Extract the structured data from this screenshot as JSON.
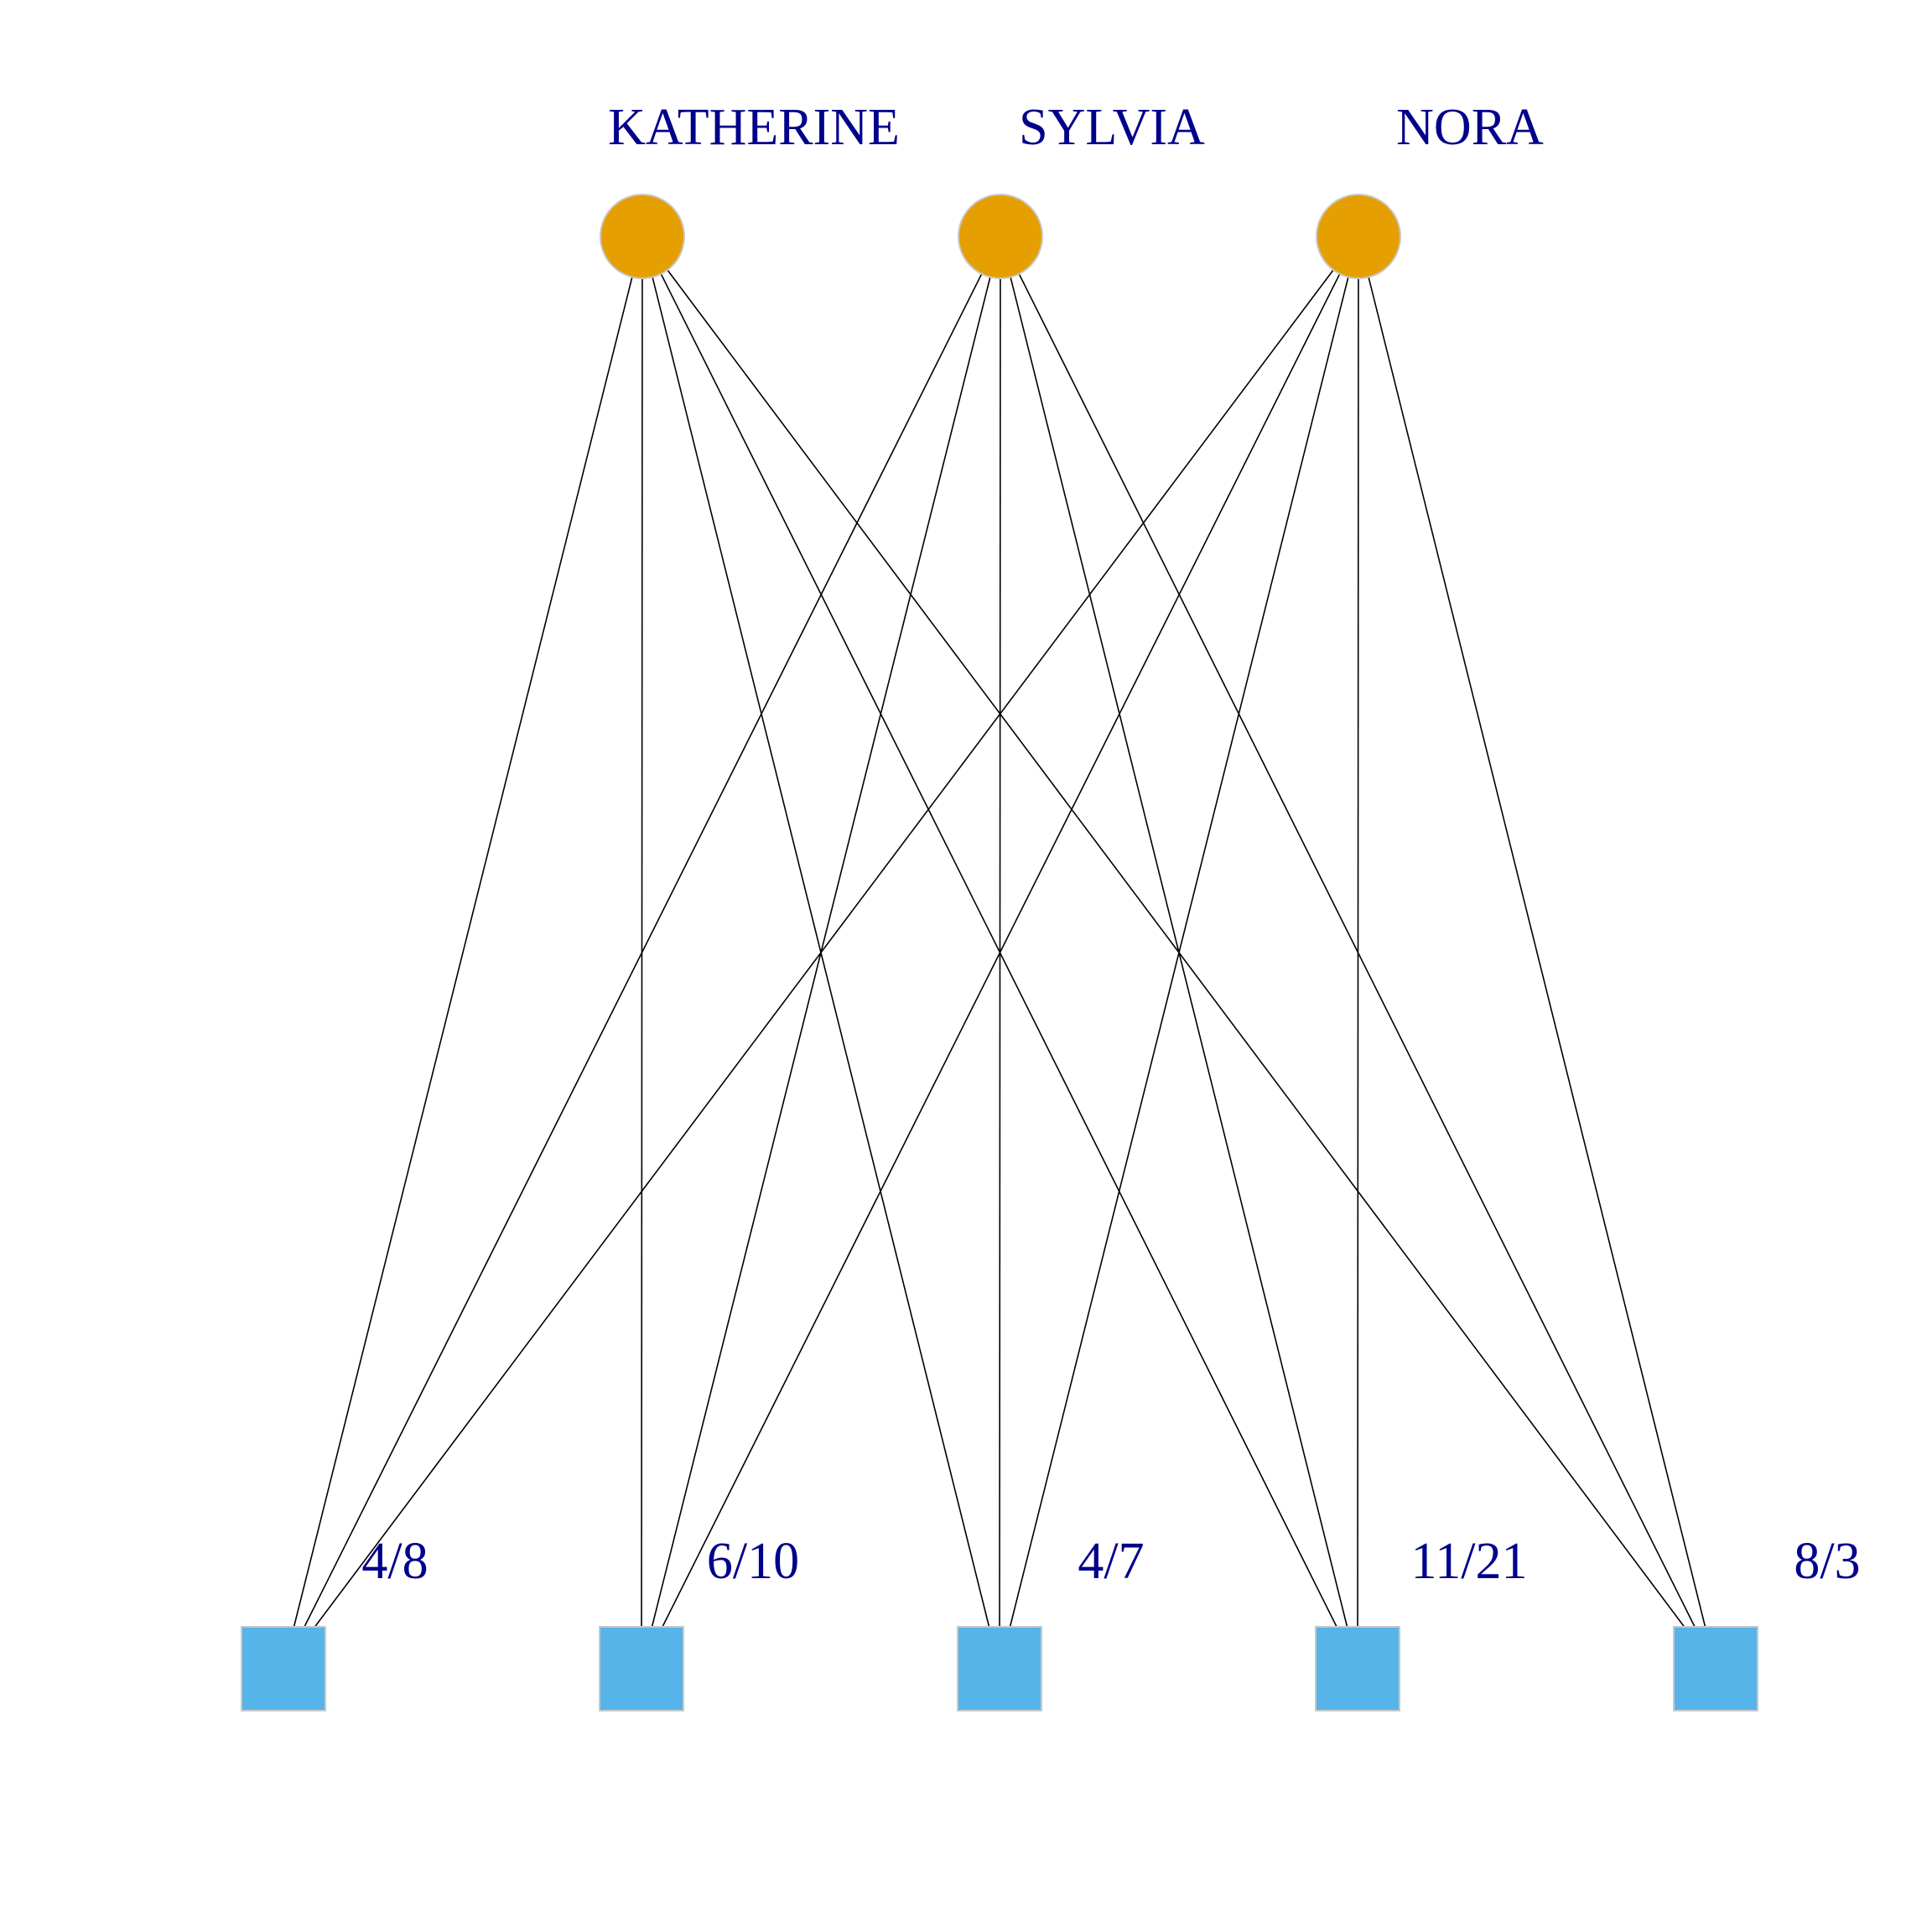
{
  "colors": {
    "background": "#ffffff",
    "person_node": "#E69F00",
    "event_node": "#56B4E9",
    "node_border": "#C8C8C8",
    "edge": "#000000",
    "label": "#00008B"
  },
  "graph": {
    "type": "bipartite",
    "top_nodes": [
      {
        "id": "katherine",
        "label": "KATHERINE",
        "shape": "circle"
      },
      {
        "id": "sylvia",
        "label": "SYLVIA",
        "shape": "circle"
      },
      {
        "id": "nora",
        "label": "NORA",
        "shape": "circle"
      }
    ],
    "bottom_nodes": [
      {
        "id": "e1",
        "label": "4/8",
        "shape": "square"
      },
      {
        "id": "e2",
        "label": "6/10",
        "shape": "square"
      },
      {
        "id": "e3",
        "label": "4/7",
        "shape": "square"
      },
      {
        "id": "e4",
        "label": "11/21",
        "shape": "square"
      },
      {
        "id": "e5",
        "label": "8/3",
        "shape": "square"
      }
    ],
    "edges": [
      [
        "katherine",
        "e1"
      ],
      [
        "katherine",
        "e2"
      ],
      [
        "katherine",
        "e3"
      ],
      [
        "katherine",
        "e4"
      ],
      [
        "katherine",
        "e5"
      ],
      [
        "sylvia",
        "e1"
      ],
      [
        "sylvia",
        "e2"
      ],
      [
        "sylvia",
        "e3"
      ],
      [
        "sylvia",
        "e4"
      ],
      [
        "sylvia",
        "e5"
      ],
      [
        "nora",
        "e1"
      ],
      [
        "nora",
        "e2"
      ],
      [
        "nora",
        "e3"
      ],
      [
        "nora",
        "e4"
      ],
      [
        "nora",
        "e5"
      ]
    ]
  }
}
